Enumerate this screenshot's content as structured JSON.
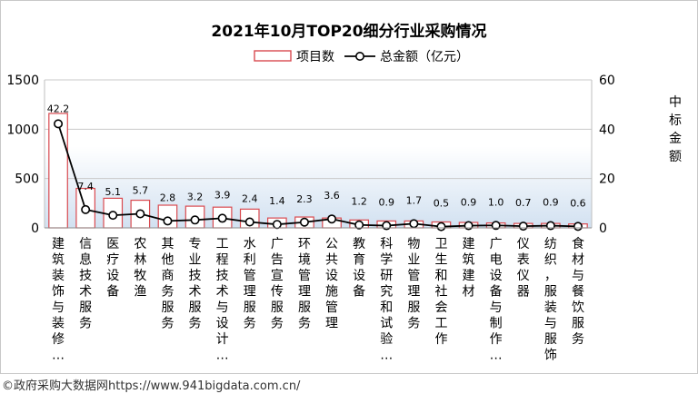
{
  "chart_data": {
    "type": "bar+line",
    "title": "2021年10月TOP20细分行业采购情况",
    "categories": [
      "建筑装饰与装修…",
      "信息技术服务",
      "医疗设备",
      "农林牧渔",
      "其他商务服务",
      "专业技术服务",
      "工程技术与设计…",
      "水利管理服务",
      "广告宣传服务",
      "环境管理服务",
      "公共设施管理",
      "教育设备",
      "科学研究和试验…",
      "物业管理服务",
      "卫生和社会工作",
      "建筑建材",
      "广电设备与制作…",
      "仪表仪器",
      "纺织，服装与服饰",
      "食材与餐饮服务"
    ],
    "series": [
      {
        "name": "项目数",
        "kind": "bar",
        "axis": "left",
        "values": [
          1160,
          400,
          300,
          280,
          230,
          220,
          210,
          190,
          100,
          110,
          100,
          80,
          70,
          70,
          60,
          55,
          50,
          45,
          45,
          40
        ]
      },
      {
        "name": "总金额（亿元）",
        "kind": "line",
        "axis": "right",
        "values": [
          42.2,
          7.4,
          5.1,
          5.7,
          2.8,
          3.2,
          3.9,
          2.4,
          1.4,
          2.3,
          3.6,
          1.2,
          0.9,
          1.7,
          0.5,
          0.9,
          1.0,
          0.7,
          0.9,
          0.6
        ]
      }
    ],
    "y_left": {
      "ticks": [
        "0",
        "500",
        "1000",
        "1500"
      ],
      "lim": [
        0,
        1500
      ]
    },
    "y_right": {
      "ticks": [
        "0",
        "20",
        "40",
        "60"
      ],
      "lim": [
        0,
        60
      ],
      "label": "中标金额"
    },
    "legend_position": "top-center",
    "bar_edge_color": "#d94a50",
    "bar_fill_color": "#ffffff",
    "line_color": "#000000"
  },
  "source": "©政府采购大数据网https://www.941bigdata.com.cn/"
}
